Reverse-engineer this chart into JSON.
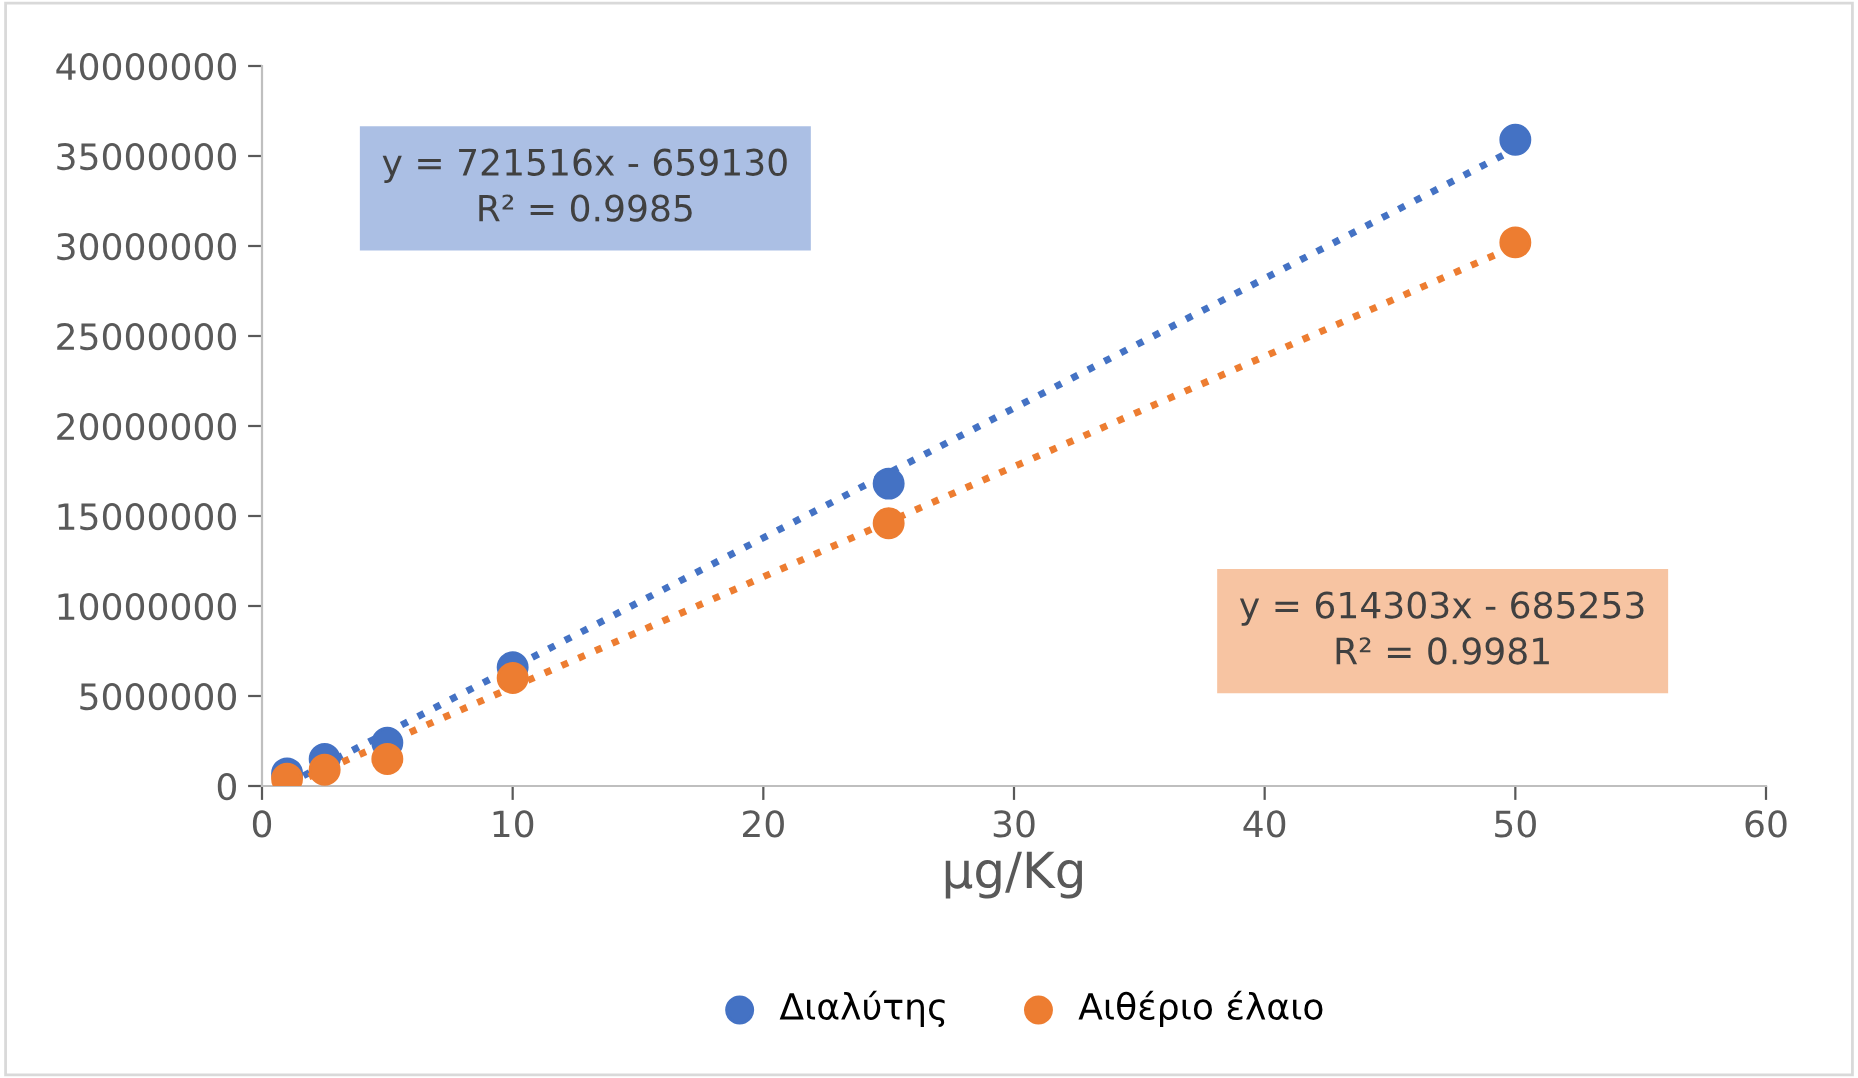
{
  "chart_data": {
    "type": "scatter",
    "xlabel": "μg/Kg",
    "marker": "circle",
    "legend": "bottom",
    "grid": false,
    "xlim": [
      0,
      60
    ],
    "xticks": [
      0,
      10,
      20,
      30,
      40,
      50,
      60
    ],
    "ylim": [
      0,
      40000000
    ],
    "yticks": [
      0,
      5000000,
      10000000,
      15000000,
      20000000,
      25000000,
      30000000,
      35000000,
      40000000
    ],
    "series": [
      {
        "name": "Διαλύτης",
        "color": "#4472c4",
        "x": [
          1,
          2.5,
          5,
          10,
          25,
          50
        ],
        "values": [
          700000,
          1500000,
          2400000,
          6600000,
          16800000,
          35900000
        ]
      },
      {
        "name": "Αιθέριο έλαιο",
        "color": "#ed7d31",
        "x": [
          1,
          2.5,
          5,
          10,
          25,
          50
        ],
        "values": [
          400000,
          900000,
          1500000,
          6000000,
          14600000,
          30200000
        ]
      },
      {
        "type": "line",
        "line_style": "dotted",
        "marker": "none",
        "color": "#4472c4",
        "x": [
          1,
          50
        ],
        "values": [
          100000,
          35400000
        ]
      },
      {
        "type": "line",
        "line_style": "dotted",
        "marker": "none",
        "color": "#ed7d31",
        "x": [
          1.2,
          50
        ],
        "values": [
          100000,
          30000000
        ]
      }
    ],
    "annotations": [
      "y = 721516x - 659130\nR² = 0.9985",
      "y = 614303x - 685253\nR² = 0.9981"
    ]
  }
}
